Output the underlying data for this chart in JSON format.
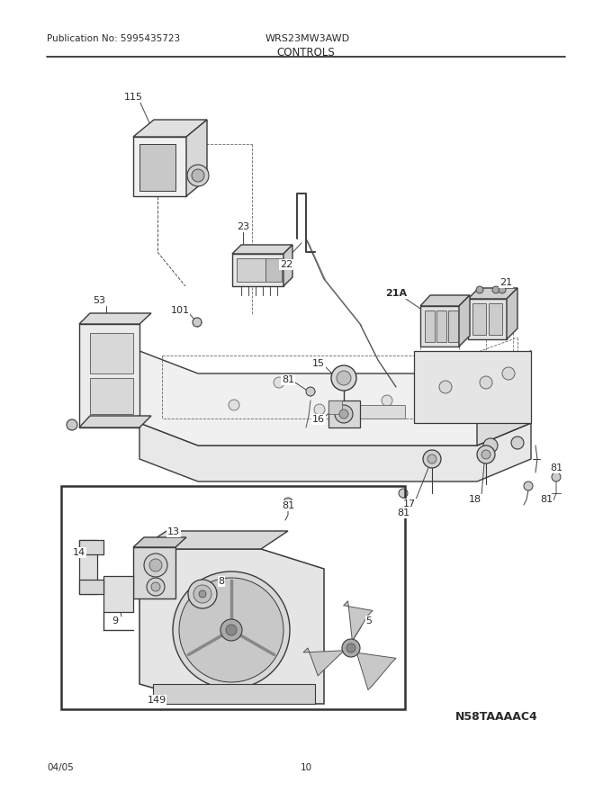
{
  "pub_no": "Publication No: 5995435723",
  "model": "WRS23MW3AWD",
  "section": "CONTROLS",
  "footer_left": "04/05",
  "footer_center": "10",
  "diagram_id": "N58TAAAAC4",
  "bg_color": "#ffffff",
  "lc": "#3a3a3a",
  "tc": "#2a2a2a",
  "figsize": [
    6.8,
    8.8
  ],
  "dpi": 100
}
